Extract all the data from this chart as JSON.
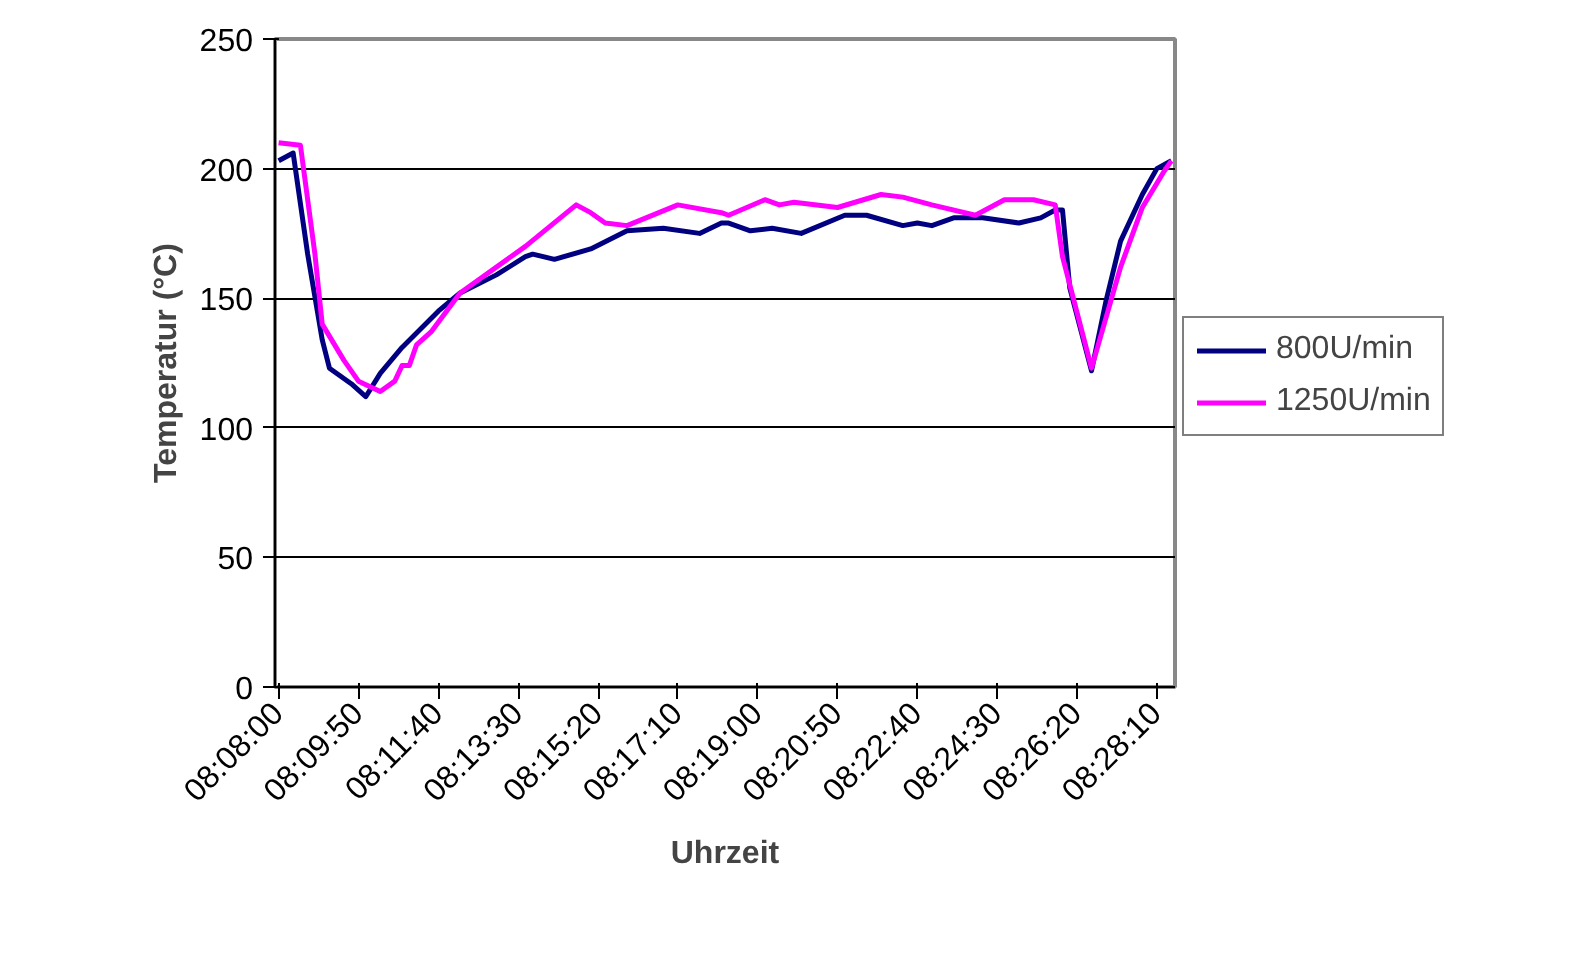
{
  "chart_data": {
    "type": "line",
    "xlabel": "Uhrzeit",
    "ylabel": "Temperatur (°C)",
    "xlim": [
      8.13194,
      8.47639
    ],
    "ylim": [
      0,
      250
    ],
    "yticks": [
      0,
      50,
      100,
      150,
      200,
      250
    ],
    "xticks": [
      {
        "value": 8.13333,
        "label": "08:08:00"
      },
      {
        "value": 8.16389,
        "label": "08:09:50"
      },
      {
        "value": 8.19444,
        "label": "08:11:40"
      },
      {
        "value": 8.225,
        "label": "08:13:30"
      },
      {
        "value": 8.25556,
        "label": "08:15:20"
      },
      {
        "value": 8.28611,
        "label": "08:17:10"
      },
      {
        "value": 8.31667,
        "label": "08:19:00"
      },
      {
        "value": 8.34722,
        "label": "08:20:50"
      },
      {
        "value": 8.37778,
        "label": "08:22:40"
      },
      {
        "value": 8.40833,
        "label": "08:24:30"
      },
      {
        "value": 8.43889,
        "label": "08:26:20"
      },
      {
        "value": 8.46944,
        "label": "08:28:10"
      }
    ],
    "grid": "y",
    "legend": "right",
    "marker": "none",
    "line_style": "solid",
    "series": [
      {
        "name": "800U/min",
        "color": "#000080",
        "x": [
          8.13333,
          8.13889,
          8.14444,
          8.15,
          8.15278,
          8.16111,
          8.16667,
          8.17222,
          8.18056,
          8.19444,
          8.20278,
          8.21667,
          8.22778,
          8.23056,
          8.23889,
          8.25278,
          8.26667,
          8.28056,
          8.29444,
          8.30278,
          8.30556,
          8.31389,
          8.32222,
          8.33333,
          8.35,
          8.35833,
          8.37222,
          8.37778,
          8.38333,
          8.39167,
          8.40278,
          8.41667,
          8.425,
          8.43056,
          8.43333,
          8.43611,
          8.44444,
          8.45,
          8.45556,
          8.46389,
          8.46944,
          8.475
        ],
        "values": [
          203,
          206,
          167,
          134,
          123,
          117,
          112,
          121,
          131,
          145,
          152,
          159,
          166,
          167,
          165,
          169,
          176,
          177,
          175,
          179,
          179,
          176,
          177,
          175,
          182,
          182,
          178,
          179,
          178,
          181,
          181,
          179,
          181,
          184,
          184,
          154,
          122,
          149,
          172,
          190,
          200,
          203
        ]
      },
      {
        "name": "1250U/min",
        "color": "#ff00ff",
        "x": [
          8.13333,
          8.14167,
          8.14722,
          8.15,
          8.15833,
          8.16389,
          8.17222,
          8.17778,
          8.18056,
          8.18333,
          8.18611,
          8.19167,
          8.20278,
          8.22778,
          8.24722,
          8.25278,
          8.25833,
          8.26667,
          8.28611,
          8.30278,
          8.30556,
          8.31944,
          8.325,
          8.33056,
          8.34722,
          8.36389,
          8.37222,
          8.38333,
          8.4,
          8.41111,
          8.42222,
          8.43056,
          8.43333,
          8.44444,
          8.45556,
          8.46389,
          8.47222,
          8.475
        ],
        "values": [
          210,
          209,
          167,
          140,
          126,
          118,
          114,
          118,
          124,
          124,
          132,
          137,
          152,
          170,
          186,
          183,
          179,
          178,
          186,
          183,
          182,
          188,
          186,
          187,
          185,
          190,
          189,
          186,
          182,
          188,
          188,
          186,
          166,
          123,
          162,
          185,
          199,
          203
        ]
      }
    ]
  }
}
